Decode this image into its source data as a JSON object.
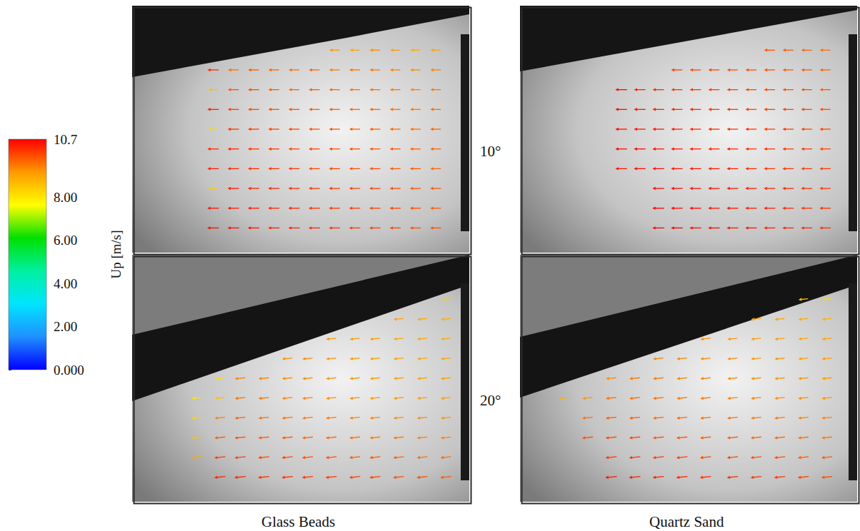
{
  "chart_data": {
    "type": "vector",
    "tick_labels": false,
    "columns": [
      "Glass Beads",
      "Quartz Sand"
    ],
    "rows": [
      "10°",
      "20°"
    ],
    "colorbar": {
      "label": "Up [m/s]",
      "range": [
        0,
        10.7
      ],
      "ticks": [
        {
          "value": 0,
          "label": "0.000"
        },
        {
          "value": 2,
          "label": "2.00"
        },
        {
          "value": 4,
          "label": "4.00"
        },
        {
          "value": 6,
          "label": "6.00"
        },
        {
          "value": 8,
          "label": "8.00"
        },
        10.7
      ],
      "colors": [
        "#0000ff",
        "#2090ff",
        "#00e5ff",
        "#00f0a0",
        "#00e000",
        "#ffff00",
        "#ff9900",
        "#ff0000"
      ]
    },
    "panels": [
      {
        "column": "Glass Beads",
        "row": "10°",
        "xlim": [
          0,
          100
        ],
        "ylim": [
          0,
          100
        ],
        "direction": 180,
        "x": [
          24,
          30,
          36,
          42,
          48,
          54,
          60,
          66,
          72,
          78,
          84,
          90
        ],
        "y": [
          90,
          82,
          74,
          66,
          58,
          50,
          42,
          34,
          26,
          18,
          10
        ],
        "speed": [
          [
            null,
            null,
            null,
            null,
            null,
            null,
            null,
            null,
            null,
            null,
            null,
            null
          ],
          [
            null,
            null,
            null,
            null,
            null,
            null,
            9.2,
            9.0,
            9.3,
            9.1,
            8.9,
            9.0
          ],
          [
            10.3,
            9.6,
            9.8,
            9.7,
            9.6,
            9.7,
            9.5,
            9.6,
            9.5,
            9.4,
            9.3,
            9.4
          ],
          [
            8.6,
            9.9,
            10.0,
            9.8,
            9.7,
            9.8,
            9.7,
            9.6,
            9.6,
            9.5,
            9.4,
            9.5
          ],
          [
            10.4,
            10.1,
            10.0,
            9.9,
            9.9,
            9.8,
            9.8,
            9.7,
            9.7,
            9.6,
            9.5,
            9.6
          ],
          [
            8.2,
            10.2,
            10.1,
            10.0,
            10.0,
            9.9,
            9.9,
            9.8,
            9.8,
            9.7,
            9.6,
            9.7
          ],
          [
            10.3,
            10.3,
            10.2,
            10.1,
            10.0,
            10.0,
            9.9,
            9.9,
            9.8,
            9.8,
            9.7,
            9.7
          ],
          [
            10.4,
            10.3,
            10.3,
            10.2,
            10.1,
            10.0,
            10.0,
            9.9,
            9.9,
            9.8,
            9.8,
            9.7
          ],
          [
            8.4,
            10.4,
            10.3,
            10.3,
            10.2,
            10.1,
            10.1,
            10.0,
            10.0,
            9.9,
            9.8,
            9.8
          ],
          [
            10.5,
            10.4,
            10.4,
            10.3,
            10.3,
            10.2,
            10.1,
            10.1,
            10.0,
            10.0,
            9.9,
            9.8
          ],
          [
            10.6,
            10.5,
            10.5,
            10.4,
            10.3,
            10.3,
            10.2,
            10.1,
            10.1,
            10.0,
            9.9,
            9.9
          ]
        ]
      },
      {
        "column": "Quartz Sand",
        "row": "10°",
        "xlim": [
          0,
          100
        ],
        "ylim": [
          0,
          100
        ],
        "direction": 180,
        "x": [
          30,
          35.5,
          41,
          46.5,
          52,
          57.5,
          63,
          68.5,
          74,
          79.5,
          85,
          90.5
        ],
        "y": [
          90,
          82,
          74,
          66,
          58,
          50,
          42,
          34,
          26,
          18,
          10
        ],
        "speed": [
          [
            null,
            null,
            null,
            null,
            null,
            null,
            null,
            null,
            null,
            null,
            null,
            null
          ],
          [
            null,
            null,
            null,
            null,
            null,
            null,
            null,
            null,
            9.9,
            9.8,
            9.7,
            9.6
          ],
          [
            null,
            null,
            null,
            10.1,
            10.0,
            10.0,
            9.9,
            9.9,
            9.9,
            9.8,
            9.8,
            9.7
          ],
          [
            10.7,
            10.4,
            10.3,
            10.2,
            10.2,
            10.1,
            10.1,
            10.0,
            10.0,
            9.9,
            9.9,
            9.8
          ],
          [
            10.6,
            10.5,
            10.4,
            10.3,
            10.3,
            10.2,
            10.2,
            10.1,
            10.1,
            10.0,
            10.0,
            9.9
          ],
          [
            10.6,
            10.5,
            10.5,
            10.4,
            10.3,
            10.3,
            10.2,
            10.2,
            10.1,
            10.1,
            10.0,
            10.0
          ],
          [
            10.6,
            10.6,
            10.5,
            10.5,
            10.4,
            10.3,
            10.3,
            10.2,
            10.2,
            10.1,
            10.1,
            10.0
          ],
          [
            10.5,
            10.6,
            10.6,
            10.5,
            10.5,
            10.4,
            10.4,
            10.3,
            10.2,
            10.2,
            10.1,
            10.1
          ],
          [
            null,
            null,
            10.6,
            10.6,
            10.5,
            10.5,
            10.4,
            10.4,
            10.3,
            10.3,
            10.2,
            10.1
          ],
          [
            null,
            null,
            10.7,
            10.6,
            10.6,
            10.5,
            10.5,
            10.4,
            10.4,
            10.3,
            10.2,
            10.2
          ],
          [
            null,
            null,
            10.7,
            10.7,
            10.6,
            10.6,
            10.5,
            10.5,
            10.4,
            10.3,
            10.3,
            10.2
          ]
        ]
      },
      {
        "column": "Glass Beads",
        "row": "20°",
        "xlim": [
          0,
          100
        ],
        "ylim": [
          0,
          100
        ],
        "direction": 186,
        "x": [
          19,
          26,
          32,
          39,
          46,
          52,
          59,
          66,
          72,
          79,
          86,
          93
        ],
        "y": [
          90,
          82,
          74,
          66,
          58,
          50,
          42,
          34,
          26,
          18,
          10
        ],
        "speed": [
          [
            null,
            null,
            null,
            null,
            null,
            null,
            null,
            null,
            null,
            null,
            null,
            null
          ],
          [
            null,
            null,
            null,
            null,
            null,
            null,
            null,
            null,
            null,
            null,
            null,
            8.4
          ],
          [
            null,
            null,
            null,
            null,
            null,
            null,
            null,
            null,
            null,
            9.0,
            8.9,
            8.8
          ],
          [
            null,
            null,
            null,
            null,
            null,
            null,
            9.2,
            9.1,
            9.1,
            9.0,
            9.0,
            8.9
          ],
          [
            null,
            null,
            null,
            null,
            9.3,
            9.3,
            9.2,
            9.2,
            9.1,
            9.1,
            9.0,
            9.0
          ],
          [
            null,
            8.2,
            9.4,
            9.4,
            9.3,
            9.3,
            9.2,
            9.2,
            9.1,
            9.1,
            9.0,
            9.0
          ],
          [
            8.0,
            8.6,
            9.5,
            9.5,
            9.4,
            9.4,
            9.3,
            9.3,
            9.2,
            9.2,
            9.1,
            9.1
          ],
          [
            8.3,
            9.4,
            9.7,
            9.6,
            9.6,
            9.5,
            9.5,
            9.4,
            9.4,
            9.3,
            9.3,
            9.2
          ],
          [
            8.6,
            9.8,
            9.9,
            9.8,
            9.8,
            9.7,
            9.7,
            9.6,
            9.5,
            9.5,
            9.4,
            9.4
          ],
          [
            9.0,
            10.1,
            10.1,
            10.0,
            10.0,
            9.9,
            9.9,
            9.8,
            9.8,
            9.7,
            9.6,
            9.6
          ],
          [
            null,
            10.3,
            10.3,
            10.2,
            10.2,
            10.1,
            10.1,
            10.0,
            10.0,
            9.9,
            9.9,
            9.8
          ]
        ]
      },
      {
        "column": "Quartz Sand",
        "row": "20°",
        "xlim": [
          0,
          100
        ],
        "ylim": [
          0,
          100
        ],
        "direction": 186,
        "x": [
          13,
          20,
          27,
          34,
          41,
          48,
          55,
          63,
          70,
          77,
          84,
          91
        ],
        "y": [
          90,
          82,
          74,
          66,
          58,
          50,
          42,
          34,
          26,
          18,
          10
        ],
        "speed": [
          [
            null,
            null,
            null,
            null,
            null,
            null,
            null,
            null,
            null,
            null,
            null,
            null
          ],
          [
            null,
            null,
            null,
            null,
            null,
            null,
            null,
            null,
            null,
            null,
            8.6,
            8.2
          ],
          [
            null,
            null,
            null,
            null,
            null,
            null,
            null,
            null,
            9.1,
            9.0,
            8.9,
            8.8
          ],
          [
            null,
            null,
            null,
            null,
            null,
            null,
            9.3,
            9.2,
            9.1,
            9.1,
            9.0,
            9.0
          ],
          [
            null,
            null,
            null,
            null,
            9.4,
            9.4,
            9.3,
            9.3,
            9.2,
            9.2,
            9.1,
            9.1
          ],
          [
            null,
            null,
            9.3,
            9.5,
            9.5,
            9.4,
            9.4,
            9.3,
            9.3,
            9.2,
            9.2,
            9.1
          ],
          [
            8.8,
            9.2,
            9.6,
            9.6,
            9.6,
            9.5,
            9.5,
            9.4,
            9.4,
            9.3,
            9.3,
            9.2
          ],
          [
            null,
            9.6,
            9.8,
            9.8,
            9.7,
            9.7,
            9.6,
            9.6,
            9.5,
            9.5,
            9.4,
            9.4
          ],
          [
            null,
            9.9,
            10.0,
            10.0,
            9.9,
            9.9,
            9.8,
            9.8,
            9.7,
            9.7,
            9.6,
            9.5
          ],
          [
            null,
            null,
            10.2,
            10.2,
            10.1,
            10.1,
            10.0,
            10.0,
            9.9,
            9.9,
            9.8,
            9.8
          ],
          [
            null,
            null,
            10.5,
            10.4,
            10.3,
            10.3,
            10.2,
            10.2,
            10.1,
            10.1,
            10.0,
            9.9
          ]
        ]
      }
    ]
  }
}
